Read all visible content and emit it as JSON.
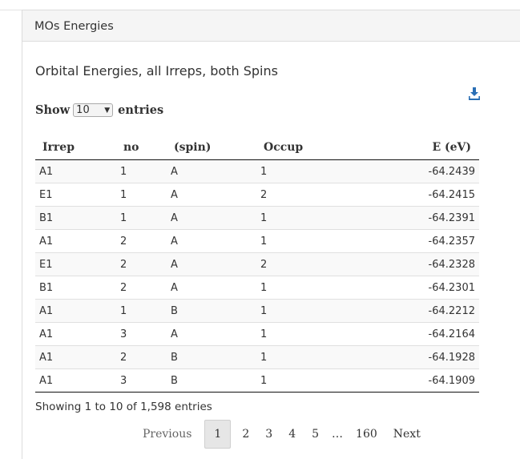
{
  "panel": {
    "heading": "MOs Energies"
  },
  "section": {
    "title": "Orbital Energies, all Irreps, both Spins"
  },
  "icons": {
    "download": "download-icon",
    "accent": "#2a6fb5"
  },
  "length_menu": {
    "show_label": "Show",
    "selected": "10",
    "entries_label": "entries"
  },
  "table": {
    "columns": [
      "Irrep",
      "no",
      "(spin)",
      "Occup",
      "E (eV)"
    ],
    "rows": [
      [
        "A1",
        "1",
        "A",
        "1",
        "-64.2439"
      ],
      [
        "E1",
        "1",
        "A",
        "2",
        "-64.2415"
      ],
      [
        "B1",
        "1",
        "A",
        "1",
        "-64.2391"
      ],
      [
        "A1",
        "2",
        "A",
        "1",
        "-64.2357"
      ],
      [
        "E1",
        "2",
        "A",
        "2",
        "-64.2328"
      ],
      [
        "B1",
        "2",
        "A",
        "1",
        "-64.2301"
      ],
      [
        "A1",
        "1",
        "B",
        "1",
        "-64.2212"
      ],
      [
        "A1",
        "3",
        "A",
        "1",
        "-64.2164"
      ],
      [
        "A1",
        "2",
        "B",
        "1",
        "-64.1928"
      ],
      [
        "A1",
        "3",
        "B",
        "1",
        "-64.1909"
      ]
    ]
  },
  "info": "Showing 1 to 10 of 1,598 entries",
  "pagination": {
    "previous": "Previous",
    "pages": [
      "1",
      "2",
      "3",
      "4",
      "5"
    ],
    "ellipsis": "…",
    "last": "160",
    "next": "Next"
  }
}
